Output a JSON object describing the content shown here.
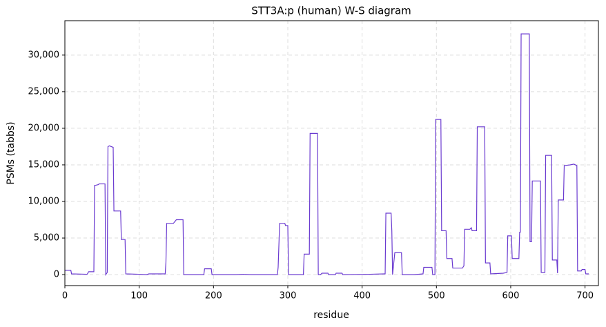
{
  "chart_data": {
    "type": "line",
    "title": "STT3A:p (human) W-S diagram",
    "x_label": "residue",
    "y_label": "PSMs (tabbs)",
    "xlim": [
      0,
      718
    ],
    "ylim": [
      -1500,
      34700
    ],
    "xticks": [
      0,
      100,
      200,
      300,
      400,
      500,
      600,
      700
    ],
    "yticks": [
      0,
      {
        "value": 5000,
        "label": "5,000"
      },
      {
        "value": 10000,
        "label": "10,000"
      },
      {
        "value": 15000,
        "label": "15,000"
      },
      {
        "value": 20000,
        "label": "20,000"
      },
      {
        "value": 25000,
        "label": "25,000"
      },
      {
        "value": 30000,
        "label": "30,000"
      }
    ],
    "grid": true,
    "series": [
      {
        "color": "#6a3ad0",
        "x": [
          0,
          8,
          9,
          30,
          32,
          39,
          40,
          41,
          45,
          46,
          54,
          55,
          57,
          58,
          60,
          65,
          66,
          75,
          76,
          81,
          82,
          100,
          110,
          113,
          135,
          136,
          137,
          146,
          150,
          159,
          160,
          187,
          188,
          197,
          198,
          230,
          240,
          250,
          286,
          287,
          289,
          296,
          297,
          300,
          301,
          321,
          322,
          329,
          330,
          340,
          341,
          344,
          346,
          354,
          355,
          364,
          365,
          373,
          374,
          410,
          430,
          431,
          432,
          439,
          440,
          441,
          444,
          453,
          454,
          470,
          482,
          483,
          494,
          495,
          498,
          499,
          506,
          507,
          513,
          514,
          521,
          522,
          535,
          537,
          538,
          545,
          547,
          548,
          554,
          555,
          565,
          566,
          572,
          573,
          590,
          595,
          596,
          601,
          602,
          611,
          612,
          613,
          614,
          625,
          626,
          628,
          629,
          640,
          641,
          646,
          647,
          655,
          656,
          662,
          663,
          664,
          671,
          672,
          680,
          685,
          689,
          690,
          695,
          696,
          700,
          701,
          705
        ],
        "values": [
          600,
          600,
          100,
          50,
          400,
          400,
          12200,
          12200,
          12300,
          12400,
          12400,
          0,
          300,
          17500,
          17600,
          17400,
          8700,
          8700,
          4800,
          4800,
          100,
          50,
          0,
          100,
          100,
          1700,
          7000,
          7000,
          7500,
          7500,
          0,
          0,
          800,
          800,
          0,
          0,
          50,
          0,
          0,
          1000,
          7000,
          7000,
          6700,
          6700,
          0,
          0,
          2800,
          2800,
          19300,
          19300,
          0,
          0,
          200,
          200,
          0,
          0,
          200,
          200,
          0,
          50,
          100,
          100,
          8400,
          8400,
          6000,
          0,
          3000,
          3000,
          0,
          0,
          100,
          1000,
          1000,
          0,
          0,
          21200,
          21200,
          6000,
          6000,
          2200,
          2200,
          900,
          900,
          1200,
          6200,
          6200,
          6400,
          6000,
          6000,
          20200,
          20200,
          1600,
          1600,
          100,
          200,
          300,
          5300,
          5300,
          2200,
          2200,
          5800,
          5800,
          32900,
          32900,
          4500,
          4500,
          12800,
          12800,
          300,
          300,
          16300,
          16300,
          2000,
          2000,
          200,
          10200,
          10200,
          14900,
          15000,
          15100,
          14900,
          500,
          500,
          700,
          700,
          100,
          100
        ]
      }
    ]
  }
}
